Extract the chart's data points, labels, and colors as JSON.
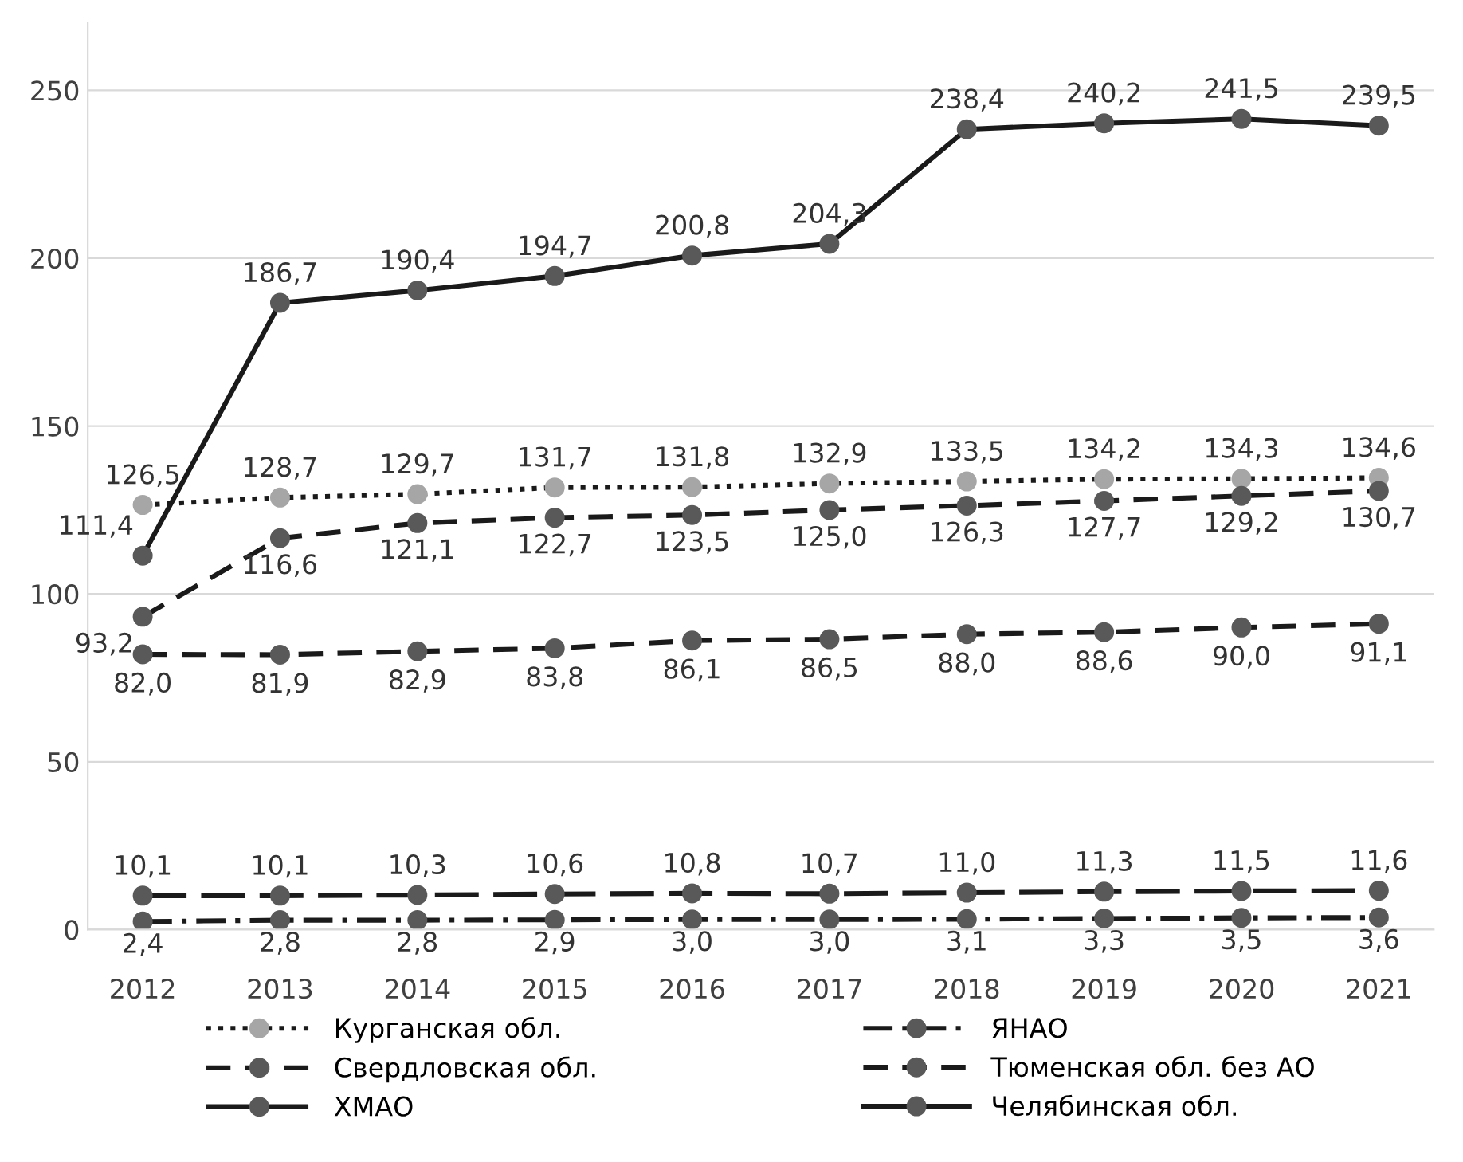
{
  "chart_data": {
    "type": "line",
    "categories": [
      "2012",
      "2013",
      "2014",
      "2015",
      "2016",
      "2017",
      "2018",
      "2019",
      "2020",
      "2021"
    ],
    "ylim": [
      0,
      270
    ],
    "yticks": [
      0,
      50,
      100,
      150,
      200,
      250
    ],
    "grid": "y",
    "legend": "bottom",
    "marker": "circle",
    "series": [
      {
        "name": "Курганская обл.",
        "color": "#a6a6a6",
        "line_style": "dotted",
        "values": [
          126.5,
          128.7,
          129.7,
          131.7,
          131.8,
          132.9,
          133.5,
          134.2,
          134.3,
          134.6
        ],
        "value_labels": [
          "126,5",
          "128,7",
          "129,7",
          "131,7",
          "131,8",
          "132,9",
          "133,5",
          "134,2",
          "134,3",
          "134,6"
        ]
      },
      {
        "name": "Свердловская обл.",
        "color": "#595959",
        "line_style": "dashed",
        "values": [
          93.2,
          116.6,
          121.1,
          122.7,
          123.5,
          125.0,
          126.3,
          127.7,
          129.2,
          130.7
        ],
        "value_labels": [
          "93,2",
          "116,6",
          "121,1",
          "122,7",
          "123,5",
          "125,0",
          "126,3",
          "127,7",
          "129,2",
          "130,7"
        ]
      },
      {
        "name": "ХМАО",
        "color": "#595959",
        "line_style": "longdash",
        "values": [
          10.1,
          10.1,
          10.3,
          10.6,
          10.8,
          10.7,
          11.0,
          11.3,
          11.5,
          11.6
        ],
        "value_labels": [
          "10,1",
          "10,1",
          "10,3",
          "10,6",
          "10,8",
          "10,7",
          "11,0",
          "11,3",
          "11,5",
          "11,6"
        ]
      },
      {
        "name": "ЯНАО",
        "color": "#595959",
        "line_style": "dashdot",
        "values": [
          2.4,
          2.8,
          2.8,
          2.9,
          3.0,
          3.0,
          3.1,
          3.3,
          3.5,
          3.6
        ],
        "value_labels": [
          "2,4",
          "2,8",
          "2,8",
          "2,9",
          "3,0",
          "3,0",
          "3,1",
          "3,3",
          "3,5",
          "3,6"
        ]
      },
      {
        "name": "Тюменская обл. без АО",
        "color": "#595959",
        "line_style": "dashed",
        "values": [
          82.0,
          81.9,
          82.9,
          83.8,
          86.1,
          86.5,
          88.0,
          88.6,
          90.0,
          91.1
        ],
        "value_labels": [
          "82,0",
          "81,9",
          "82,9",
          "83,8",
          "86,1",
          "86,5",
          "88,0",
          "88,6",
          "90,0",
          "91,1"
        ]
      },
      {
        "name": "Челябинская обл.",
        "color": "#595959",
        "line_style": "solid",
        "values": [
          111.4,
          186.7,
          190.4,
          194.7,
          200.8,
          204.3,
          238.4,
          240.2,
          241.5,
          239.5
        ],
        "value_labels": [
          "111,4",
          "186,7",
          "190,4",
          "194,7",
          "200,8",
          "204,3",
          "238,4",
          "240,2",
          "241,5",
          "239,5"
        ]
      }
    ]
  }
}
